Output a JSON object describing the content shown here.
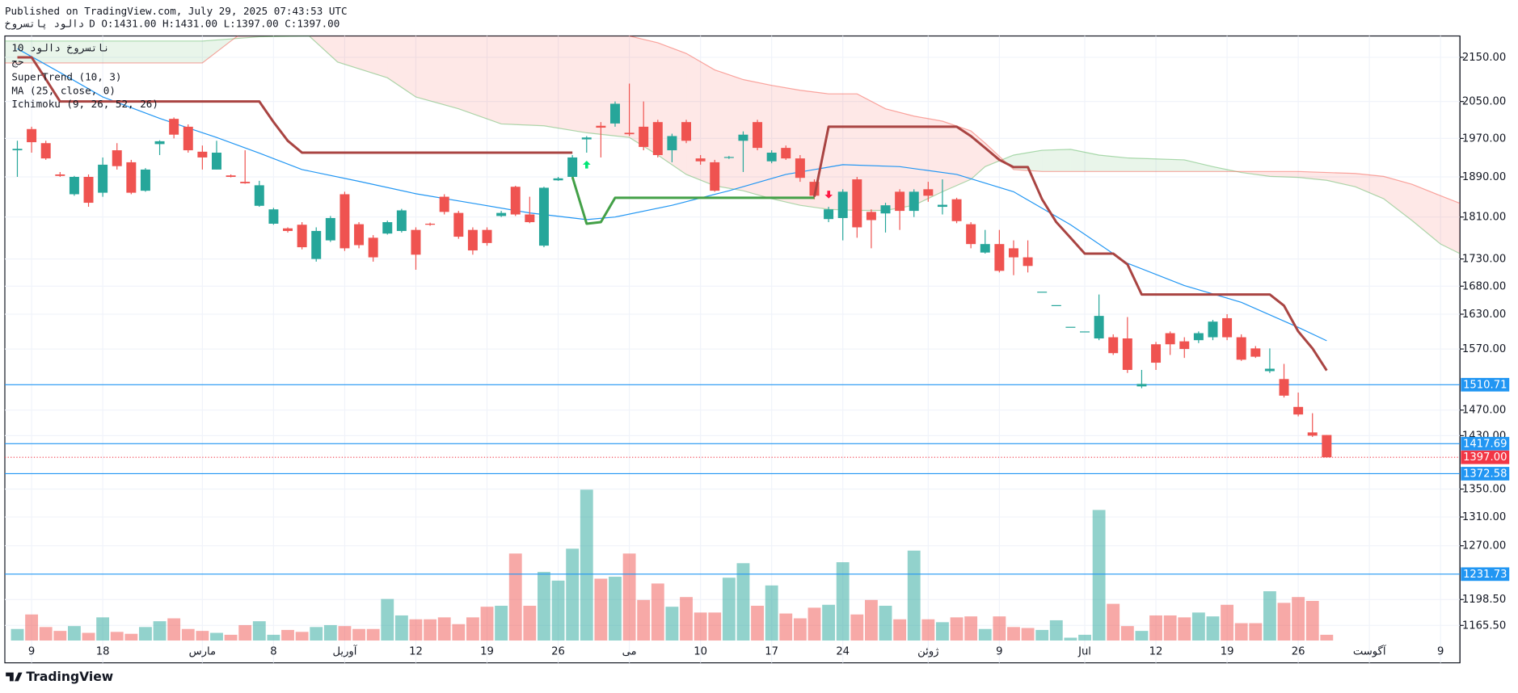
{
  "header": {
    "published": "Published on TradingView.com, July 29, 2025 07:43:53 UTC",
    "symbol": "دالود پاتسروخ",
    "ohlc": "D O:1431.00 H:1431.00 L:1397.00 C:1397.00"
  },
  "footer": {
    "brand": "TradingView"
  },
  "chart_data": {
    "type": "candlestick",
    "legend_title": "ناتسروخ دالود 10",
    "legend_subtitle": "حج",
    "log_scale": true,
    "grid": true,
    "up_color": "#26a69a",
    "down_color": "#ef5350",
    "ylim": [
      1146.6,
      2200
    ],
    "yticks": [
      {
        "value": 2150,
        "label": "2150.00"
      },
      {
        "value": 2050,
        "label": "2050.00"
      },
      {
        "value": 1970,
        "label": "1970.00"
      },
      {
        "value": 1890,
        "label": "1890.00"
      },
      {
        "value": 1810,
        "label": "1810.00"
      },
      {
        "value": 1730,
        "label": "1730.00"
      },
      {
        "value": 1680,
        "label": "1680.00"
      },
      {
        "value": 1630,
        "label": "1630.00"
      },
      {
        "value": 1570,
        "label": "1570.00"
      },
      {
        "value": 1470,
        "label": "1470.00"
      },
      {
        "value": 1430,
        "label": "1430.00"
      },
      {
        "value": 1350,
        "label": "1350.00"
      },
      {
        "value": 1310,
        "label": "1310.00"
      },
      {
        "value": 1270,
        "label": "1270.00"
      },
      {
        "value": 1198.5,
        "label": "1198.50"
      },
      {
        "value": 1165.5,
        "label": "1165.50"
      }
    ],
    "xlim": [
      -0.88,
      101.36
    ],
    "xticks": [
      {
        "value": 1,
        "label": "9"
      },
      {
        "value": 6,
        "label": "18"
      },
      {
        "value": 13,
        "label": "مارس"
      },
      {
        "value": 18,
        "label": "8"
      },
      {
        "value": 23,
        "label": "آوریل"
      },
      {
        "value": 28,
        "label": "12"
      },
      {
        "value": 33,
        "label": "19"
      },
      {
        "value": 38,
        "label": "26"
      },
      {
        "value": 43,
        "label": "می"
      },
      {
        "value": 48,
        "label": "10"
      },
      {
        "value": 53,
        "label": "17"
      },
      {
        "value": 58,
        "label": "24"
      },
      {
        "value": 64,
        "label": "ژوئن"
      },
      {
        "value": 69,
        "label": "9"
      },
      {
        "value": 75,
        "label": "Jul"
      },
      {
        "value": 80,
        "label": "12"
      },
      {
        "value": 85,
        "label": "19"
      },
      {
        "value": 90,
        "label": "26"
      },
      {
        "value": 95,
        "label": "آگوست"
      },
      {
        "value": 100,
        "label": "9"
      }
    ],
    "open": [
      1945,
      1990,
      1960,
      1895,
      1855,
      1890,
      1858,
      1945,
      1920,
      1862,
      1958,
      2012,
      1995,
      1942,
      1905,
      1893,
      1880,
      1832,
      1797,
      1788,
      1795,
      1730,
      1765,
      1855,
      1796,
      1770,
      1778,
      1783,
      1785,
      1797,
      1850,
      1818,
      1785,
      1785,
      1812,
      1870,
      1815,
      1755,
      1883,
      1890,
      1968,
      1997,
      2002,
      1982,
      1995,
      2005,
      1945,
      2005,
      1928,
      1920,
      1929,
      1965,
      2005,
      1922,
      1950,
      1928,
      1880,
      1806,
      1808,
      1885,
      1820,
      1817,
      1860,
      1822,
      1865,
      1830,
      1845,
      1796,
      1742,
      1758,
      1750,
      1733,
      1670,
      1646,
      1608,
      1600,
      1588,
      1590,
      1588,
      1508,
      1578,
      1597,
      1583,
      1585,
      1590,
      1623,
      1590,
      1571,
      1533,
      1520,
      1475,
      1435,
      1431
    ],
    "high": [
      1965,
      1995,
      1965,
      1900,
      1892,
      1895,
      1930,
      1960,
      1925,
      1908,
      1966,
      2015,
      2000,
      1955,
      1965,
      1895,
      1945,
      1882,
      1828,
      1790,
      1800,
      1790,
      1812,
      1860,
      1800,
      1775,
      1803,
      1826,
      1790,
      1799,
      1855,
      1822,
      1790,
      1790,
      1822,
      1872,
      1850,
      1870,
      1890,
      1935,
      1975,
      2005,
      2050,
      2090,
      2050,
      2010,
      1980,
      2010,
      1935,
      1925,
      1933,
      1985,
      2010,
      1945,
      1955,
      1935,
      1885,
      1830,
      1865,
      1890,
      1825,
      1838,
      1865,
      1865,
      1880,
      1885,
      1848,
      1800,
      1785,
      1785,
      1765,
      1765,
      1670,
      1646,
      1608,
      1600,
      1665,
      1595,
      1625,
      1535,
      1582,
      1600,
      1590,
      1600,
      1620,
      1630,
      1595,
      1575,
      1571,
      1545,
      1498,
      1465,
      1431
    ],
    "low": [
      1890,
      1940,
      1925,
      1890,
      1852,
      1830,
      1850,
      1905,
      1855,
      1860,
      1935,
      1970,
      1940,
      1905,
      1905,
      1889,
      1876,
      1830,
      1795,
      1780,
      1748,
      1725,
      1762,
      1745,
      1750,
      1725,
      1776,
      1780,
      1710,
      1793,
      1815,
      1768,
      1738,
      1755,
      1810,
      1812,
      1798,
      1752,
      1882,
      1885,
      1940,
      1930,
      1995,
      1975,
      1945,
      1930,
      1920,
      1960,
      1915,
      1860,
      1927,
      1900,
      1945,
      1918,
      1925,
      1880,
      1845,
      1800,
      1765,
      1770,
      1750,
      1780,
      1785,
      1810,
      1840,
      1815,
      1798,
      1750,
      1740,
      1705,
      1700,
      1705,
      1670,
      1646,
      1608,
      1600,
      1585,
      1560,
      1530,
      1505,
      1535,
      1560,
      1555,
      1580,
      1585,
      1585,
      1550,
      1555,
      1530,
      1490,
      1460,
      1428,
      1397
    ],
    "close": [
      1948,
      1962,
      1928,
      1892,
      1890,
      1838,
      1915,
      1912,
      1858,
      1905,
      1964,
      1978,
      1945,
      1930,
      1940,
      1890,
      1877,
      1873,
      1825,
      1783,
      1752,
      1783,
      1808,
      1750,
      1756,
      1733,
      1800,
      1823,
      1738,
      1795,
      1820,
      1772,
      1746,
      1760,
      1818,
      1815,
      1800,
      1868,
      1887,
      1930,
      1972,
      1993,
      2045,
      1979,
      1952,
      1935,
      1975,
      1965,
      1922,
      1862,
      1931,
      1978,
      1950,
      1940,
      1928,
      1888,
      1852,
      1825,
      1860,
      1790,
      1804,
      1833,
      1822,
      1860,
      1852,
      1834,
      1802,
      1758,
      1758,
      1708,
      1733,
      1717,
      1670,
      1646,
      1608,
      1600,
      1627,
      1563,
      1535,
      1512,
      1547,
      1578,
      1570,
      1597,
      1617,
      1590,
      1552,
      1557,
      1537,
      1493,
      1463,
      1430,
      1397
    ],
    "volume": [
      12,
      27,
      14,
      10,
      15,
      8,
      24,
      9,
      7,
      14,
      20,
      23,
      12,
      10,
      8,
      6,
      16,
      20,
      6,
      11,
      9,
      14,
      16,
      15,
      12,
      12,
      43,
      26,
      22,
      22,
      24,
      17,
      24,
      35,
      36,
      90,
      36,
      71,
      62,
      95,
      156,
      64,
      66,
      90,
      42,
      59,
      35,
      45,
      29,
      29,
      65,
      80,
      36,
      57,
      28,
      23,
      34,
      37,
      81,
      27,
      42,
      36,
      22,
      93,
      22,
      19,
      24,
      25,
      12,
      25,
      14,
      13,
      11,
      21,
      3,
      6,
      135,
      38,
      15,
      10,
      26,
      26,
      24,
      29,
      25,
      37,
      18,
      18,
      51,
      39,
      45,
      41,
      6
    ],
    "supertrend": {
      "name": "SuperTrend (10, 3)",
      "up_color": "#43a047",
      "down_color": "#a94442",
      "up": [
        null,
        null,
        null,
        null,
        null,
        null,
        null,
        null,
        null,
        null,
        null,
        null,
        null,
        null,
        null,
        null,
        null,
        null,
        null,
        null,
        null,
        null,
        null,
        null,
        null,
        null,
        null,
        null,
        null,
        null,
        null,
        null,
        null,
        null,
        null,
        null,
        null,
        null,
        null,
        1890,
        1797,
        1800,
        1848,
        1848,
        1848,
        1848,
        1848,
        1848,
        1848,
        1848,
        1848,
        1848,
        1848,
        1848,
        1848,
        1848,
        1848,
        null,
        null,
        null,
        null,
        null,
        null,
        null,
        null,
        null,
        null,
        null,
        null,
        null,
        null,
        null,
        null,
        null,
        null,
        null,
        null,
        null,
        null,
        null,
        null,
        null,
        null,
        null,
        null,
        null,
        null,
        null,
        null,
        null,
        null,
        null,
        null
      ],
      "down": [
        2150,
        2150,
        2100,
        2050,
        2050,
        2050,
        2050,
        2050,
        2050,
        2050,
        2050,
        2050,
        2050,
        2050,
        2050,
        2050,
        2050,
        2050,
        2005,
        1965,
        1940,
        1940,
        1940,
        1940,
        1940,
        1940,
        1940,
        1940,
        1940,
        1940,
        1940,
        1940,
        1940,
        1940,
        1940,
        1940,
        1940,
        1940,
        1940,
        1940,
        null,
        null,
        null,
        null,
        null,
        null,
        null,
        null,
        null,
        null,
        null,
        null,
        null,
        null,
        null,
        null,
        1850,
        1995,
        1995,
        1995,
        1995,
        1995,
        1995,
        1995,
        1995,
        1995,
        1995,
        1975,
        1950,
        1925,
        1910,
        1910,
        1845,
        1800,
        1770,
        1740,
        1740,
        1740,
        1720,
        1665,
        1665,
        1665,
        1665,
        1665,
        1665,
        1665,
        1665,
        1665,
        1665,
        1645,
        1600,
        1571,
        1534
      ]
    },
    "ma": {
      "name": "MA (25, close, 0)",
      "color": "#2196f3",
      "x": [
        0,
        3,
        6,
        10,
        14,
        17,
        20,
        24,
        28,
        32,
        36,
        40,
        42,
        46,
        50,
        54,
        58,
        62,
        66,
        70,
        74,
        78,
        82,
        86,
        90,
        92
      ],
      "values": [
        2170,
        2115,
        2060,
        2013,
        1972,
        1939,
        1905,
        1881,
        1856,
        1837,
        1818,
        1805,
        1810,
        1833,
        1862,
        1895,
        1915,
        1911,
        1895,
        1860,
        1795,
        1722,
        1681,
        1651,
        1607,
        1584
      ]
    },
    "ichimoku": {
      "name": "Ichimoku (9, 26, 52, 26)",
      "up_color": "#4caf50",
      "down_color": "#f44336",
      "x": [
        -0.88,
        13,
        15,
        17,
        20.5,
        22.5,
        26,
        28,
        31,
        34,
        37,
        40,
        43,
        45,
        47,
        49,
        51,
        53,
        55,
        57,
        59,
        61,
        63,
        65,
        67,
        68,
        70,
        72,
        74,
        76,
        78,
        80,
        82,
        84,
        86,
        88,
        90,
        92,
        94,
        96,
        98,
        100,
        101.36
      ],
      "span_a": [
        2188,
        2188,
        2193,
        2198,
        2200,
        2139,
        2103,
        2060,
        2034,
        2001,
        1997,
        1982,
        1972,
        1935,
        1895,
        1872,
        1862,
        1846,
        1833,
        1825,
        1823,
        1823,
        1833,
        1860,
        1885,
        1911,
        1935,
        1945,
        1947,
        1935,
        1929,
        1927,
        1925,
        1911,
        1899,
        1891,
        1889,
        1883,
        1870,
        1846,
        1803,
        1758,
        1740
      ],
      "span_b": [
        2137,
        2137,
        2188,
        2239,
        2263,
        2263,
        2263,
        2263,
        2263,
        2263,
        2263,
        2263,
        2200,
        2184,
        2159,
        2121,
        2099,
        2086,
        2075,
        2067,
        2067,
        2034,
        2018,
        2007,
        1986,
        1960,
        1905,
        1901,
        1901,
        1901,
        1901,
        1901,
        1901,
        1901,
        1901,
        1901,
        1901,
        1899,
        1897,
        1891,
        1875,
        1852,
        1837
      ]
    },
    "levels": [
      {
        "value": 1510.71,
        "label": "1510.71"
      },
      {
        "value": 1417.69,
        "label": "1417.69"
      },
      {
        "value": 1372.58,
        "label": "1372.58"
      },
      {
        "value": 1231.73,
        "label": "1231.73"
      }
    ],
    "level_color": "#2196f3",
    "last_price": {
      "value": 1397,
      "label": "1397.00",
      "color": "#f23645"
    }
  }
}
